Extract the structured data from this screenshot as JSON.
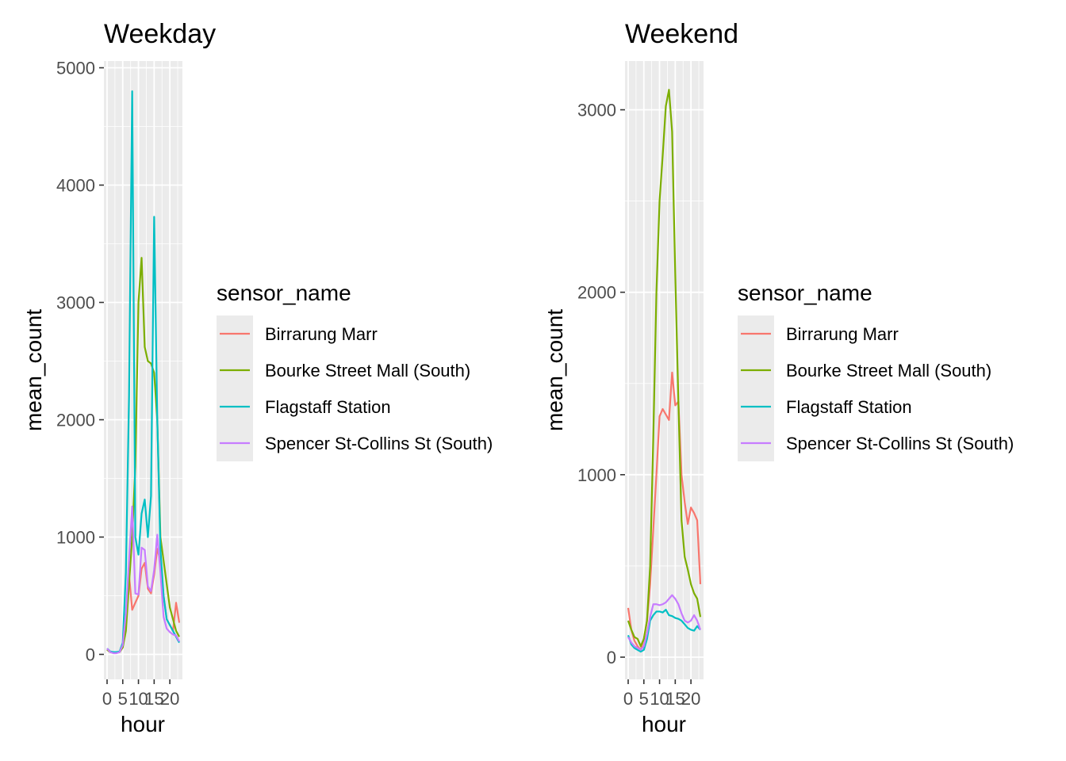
{
  "legend": {
    "title": "sensor_name",
    "entries": [
      {
        "name": "Birrarung Marr",
        "color": "#F8766D"
      },
      {
        "name": "Bourke Street Mall (South)",
        "color": "#7CAE00"
      },
      {
        "name": "Flagstaff Station",
        "color": "#00BFC4"
      },
      {
        "name": "Spencer St-Collins St (South)",
        "color": "#C77CFF"
      }
    ]
  },
  "chart_data": [
    {
      "type": "line",
      "title": "Weekday",
      "xlabel": "hour",
      "ylabel": "mean_count",
      "xlim": [
        0,
        23
      ],
      "ylim": [
        0,
        4800
      ],
      "x_ticks": [
        0,
        5,
        10,
        15,
        20
      ],
      "x_tick_labels": [
        "0",
        "5",
        "10",
        "15",
        "20"
      ],
      "y_ticks": [
        0,
        1000,
        2000,
        3000,
        4000,
        5000
      ],
      "y_tick_labels": [
        "0",
        "1000",
        "2000",
        "3000",
        "4000",
        "5000"
      ],
      "grid": true,
      "legend_position": "right",
      "x": [
        0,
        1,
        2,
        3,
        4,
        5,
        6,
        7,
        8,
        9,
        10,
        11,
        12,
        13,
        14,
        15,
        16,
        17,
        18,
        19,
        20,
        21,
        22,
        23
      ],
      "series": [
        {
          "name": "Birrarung Marr",
          "values": [
            40,
            20,
            15,
            15,
            20,
            60,
            300,
            680,
            380,
            440,
            500,
            730,
            780,
            560,
            520,
            680,
            900,
            800,
            500,
            300,
            250,
            200,
            440,
            270
          ]
        },
        {
          "name": "Bourke Street Mall (South)",
          "values": [
            40,
            20,
            15,
            15,
            20,
            60,
            200,
            600,
            1000,
            1600,
            3000,
            3380,
            2620,
            2500,
            2480,
            2400,
            2000,
            1000,
            800,
            600,
            400,
            300,
            200,
            150
          ]
        },
        {
          "name": "Flagstaff Station",
          "values": [
            50,
            25,
            20,
            20,
            25,
            100,
            700,
            2200,
            4800,
            1000,
            850,
            1200,
            1320,
            1000,
            1350,
            3730,
            2000,
            900,
            500,
            300,
            250,
            200,
            150,
            100
          ]
        },
        {
          "name": "Spencer St-Collins St (South)",
          "values": [
            50,
            20,
            10,
            10,
            20,
            80,
            350,
            800,
            1260,
            520,
            510,
            910,
            890,
            580,
            540,
            720,
            1020,
            700,
            320,
            220,
            190,
            170,
            160,
            110
          ]
        }
      ]
    },
    {
      "type": "line",
      "title": "Weekend",
      "xlabel": "hour",
      "ylabel": "mean_count",
      "xlim": [
        0,
        23
      ],
      "ylim": [
        0,
        3100
      ],
      "x_ticks": [
        0,
        5,
        10,
        15,
        20
      ],
      "x_tick_labels": [
        "0",
        "5",
        "10",
        "15",
        "20"
      ],
      "y_ticks": [
        0,
        1000,
        2000,
        3000
      ],
      "y_tick_labels": [
        "0",
        "1000",
        "2000",
        "3000"
      ],
      "grid": true,
      "legend_position": "right",
      "x": [
        0,
        1,
        2,
        3,
        4,
        5,
        6,
        7,
        8,
        9,
        10,
        11,
        12,
        13,
        14,
        15,
        16,
        17,
        18,
        19,
        20,
        21,
        22,
        23
      ],
      "series": [
        {
          "name": "Birrarung Marr",
          "values": [
            270,
            150,
            90,
            60,
            40,
            100,
            200,
            400,
            700,
            1000,
            1320,
            1360,
            1330,
            1300,
            1560,
            1380,
            1400,
            1000,
            850,
            730,
            820,
            790,
            750,
            400
          ]
        },
        {
          "name": "Bourke Street Mall (South)",
          "values": [
            200,
            150,
            110,
            100,
            60,
            100,
            200,
            500,
            1200,
            2000,
            2500,
            2750,
            3020,
            3110,
            2880,
            2100,
            1400,
            750,
            550,
            480,
            400,
            350,
            320,
            220
          ]
        },
        {
          "name": "Flagstaff Station",
          "values": [
            120,
            70,
            50,
            40,
            30,
            40,
            100,
            200,
            230,
            250,
            250,
            245,
            260,
            230,
            225,
            215,
            210,
            200,
            180,
            160,
            150,
            145,
            170,
            150
          ]
        },
        {
          "name": "Spencer St-Collins St (South)",
          "values": [
            110,
            80,
            60,
            50,
            40,
            60,
            130,
            220,
            290,
            290,
            285,
            290,
            300,
            320,
            340,
            320,
            290,
            240,
            200,
            190,
            200,
            230,
            200,
            150
          ]
        }
      ]
    }
  ]
}
